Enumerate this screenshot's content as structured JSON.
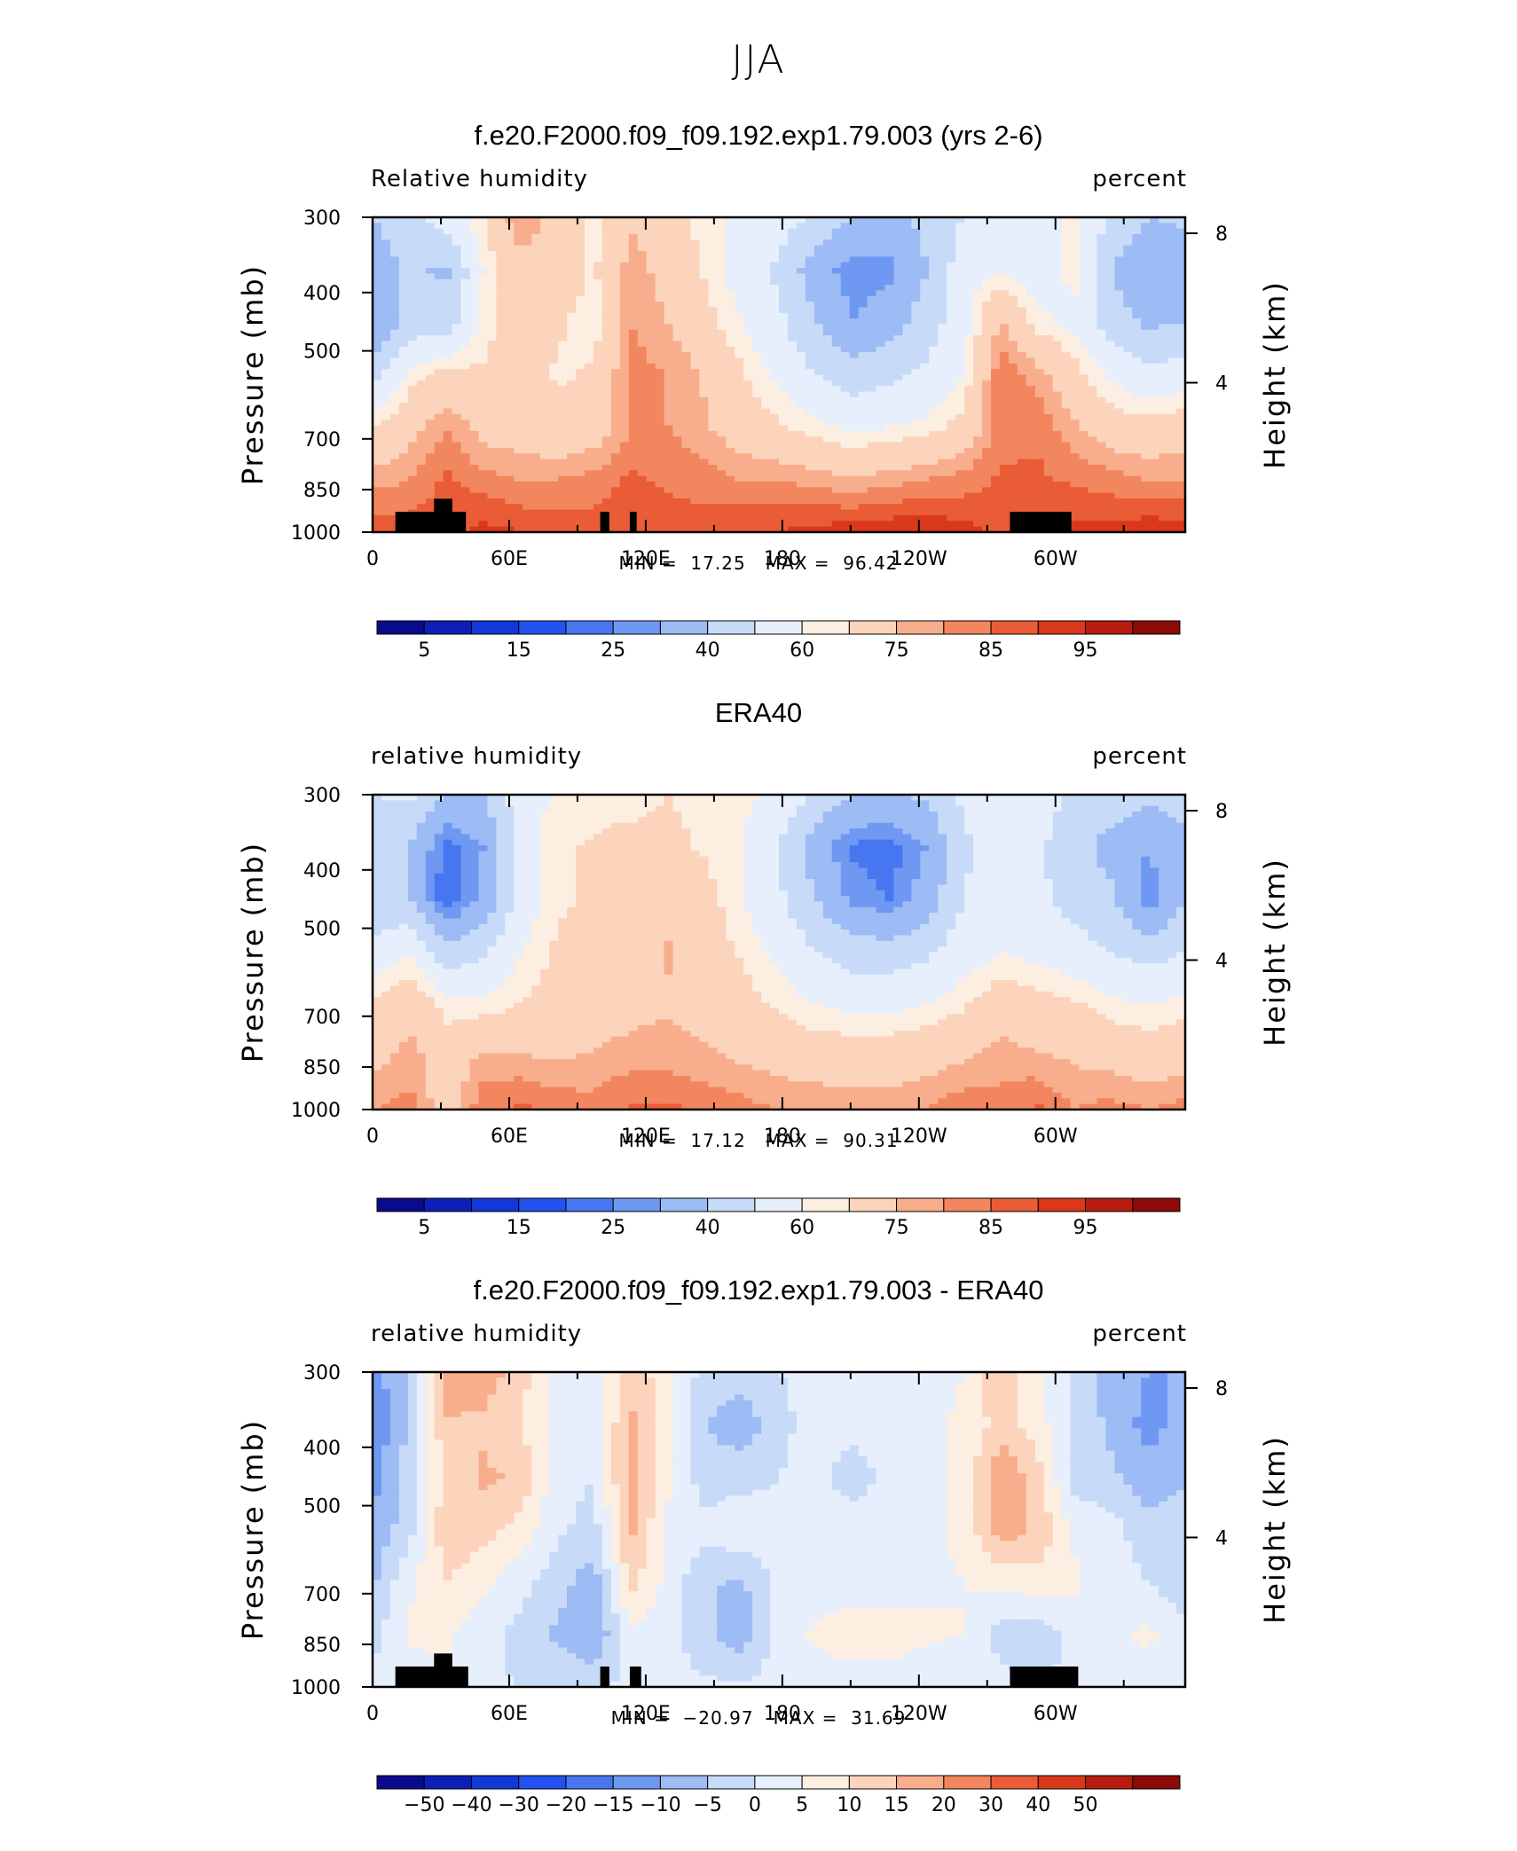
{
  "page": {
    "title": "JJA"
  },
  "colors": {
    "palette": [
      "#0a0a8c",
      "#0e1fb8",
      "#1238d8",
      "#2452f0",
      "#4677f0",
      "#6f98f2",
      "#9dbbf4",
      "#c7dbf8",
      "#e6effb",
      "#fdeee2",
      "#fcd3bb",
      "#f8ae8c",
      "#f2865e",
      "#e95c35",
      "#d9381b",
      "#b81c10",
      "#8c0a08"
    ],
    "land_mask": "#000000"
  },
  "chart_data": [
    {
      "type": "heatmap",
      "panel_id": "model",
      "title": "f.e20.F2000.f09_f09.192.exp1.79.003 (yrs 2-6)",
      "variable_label": "Relative humidity",
      "units": "percent",
      "ylabel": "Pressure (mb)",
      "ylabel_right": "Height (km)",
      "x_ticks": [
        "0",
        "60E",
        "120E",
        "180",
        "120W",
        "60W"
      ],
      "x_tick_values": [
        0,
        60,
        120,
        180,
        240,
        300
      ],
      "xlim": [
        0,
        357
      ],
      "y_ticks": [
        "300",
        "400",
        "500",
        "700",
        "850",
        "1000"
      ],
      "y_tick_values": [
        300,
        400,
        500,
        700,
        850,
        1000
      ],
      "ylim": [
        1000,
        300
      ],
      "height_ticks": [
        "8",
        "4"
      ],
      "height_tick_values": [
        8,
        4
      ],
      "min_label": "MIN =",
      "min_value": "17.25",
      "max_label": "MAX =",
      "max_value": "96.42",
      "colorbar_labels": [
        "5",
        "15",
        "25",
        "40",
        "60",
        "75",
        "85",
        "95"
      ],
      "colorbar_values": [
        5,
        15,
        25,
        40,
        60,
        75,
        85,
        95
      ],
      "field": [
        [
          40,
          48,
          55,
          65,
          80,
          72,
          62,
          74,
          70,
          62,
          58,
          55,
          48,
          40,
          38,
          42,
          50,
          58,
          55,
          62,
          48,
          40,
          42
        ],
        [
          32,
          42,
          38,
          60,
          72,
          70,
          64,
          78,
          72,
          64,
          56,
          48,
          34,
          26,
          28,
          40,
          56,
          60,
          55,
          62,
          40,
          30,
          34
        ],
        [
          30,
          44,
          45,
          62,
          70,
          66,
          62,
          80,
          75,
          68,
          60,
          52,
          40,
          30,
          35,
          45,
          56,
          76,
          62,
          58,
          45,
          38,
          40
        ],
        [
          45,
          62,
          68,
          66,
          70,
          64,
          66,
          82,
          80,
          74,
          66,
          58,
          50,
          45,
          48,
          52,
          60,
          84,
          78,
          68,
          58,
          52,
          55
        ],
        [
          65,
          72,
          80,
          72,
          70,
          68,
          70,
          80,
          80,
          76,
          70,
          66,
          62,
          58,
          60,
          62,
          68,
          82,
          84,
          76,
          70,
          68,
          70
        ],
        [
          78,
          80,
          86,
          82,
          80,
          80,
          82,
          86,
          84,
          82,
          80,
          80,
          78,
          76,
          78,
          80,
          82,
          86,
          86,
          84,
          82,
          80,
          80
        ],
        [
          88,
          88,
          88,
          92,
          90,
          88,
          88,
          90,
          88,
          88,
          90,
          90,
          92,
          93,
          94,
          95,
          92,
          88,
          90,
          92,
          92,
          94,
          92
        ]
      ],
      "land_blocks": [
        {
          "x0": 10,
          "x1": 41,
          "p_top": 925
        },
        {
          "x0": 27,
          "x1": 35,
          "p_top": 880
        },
        {
          "x0": 100,
          "x1": 104,
          "p_top": 925
        },
        {
          "x0": 113,
          "x1": 116,
          "p_top": 925
        },
        {
          "x0": 280,
          "x1": 307,
          "p_top": 925
        }
      ]
    },
    {
      "type": "heatmap",
      "panel_id": "era40",
      "title": "ERA40",
      "variable_label": "relative humidity",
      "units": "percent",
      "ylabel": "Pressure (mb)",
      "ylabel_right": "Height (km)",
      "x_ticks": [
        "0",
        "60E",
        "120E",
        "180",
        "120W",
        "60W"
      ],
      "x_tick_values": [
        0,
        60,
        120,
        180,
        240,
        300
      ],
      "xlim": [
        0,
        357
      ],
      "y_ticks": [
        "300",
        "400",
        "500",
        "700",
        "850",
        "1000"
      ],
      "y_tick_values": [
        300,
        400,
        500,
        700,
        850,
        1000
      ],
      "ylim": [
        1000,
        300
      ],
      "height_ticks": [
        "8",
        "4"
      ],
      "height_tick_values": [
        8,
        4
      ],
      "min_label": "MIN =",
      "min_value": "17.12",
      "max_label": "MAX =",
      "max_value": "90.31",
      "colorbar_labels": [
        "5",
        "15",
        "25",
        "40",
        "60",
        "75",
        "85",
        "95"
      ],
      "colorbar_values": [
        5,
        15,
        25,
        40,
        60,
        75,
        85,
        95
      ],
      "field": [
        [
          50,
          52,
          38,
          40,
          55,
          62,
          62,
          62,
          65,
          63,
          62,
          58,
          48,
          40,
          38,
          42,
          52,
          58,
          55,
          48,
          46,
          42,
          44
        ],
        [
          44,
          40,
          22,
          30,
          55,
          64,
          66,
          68,
          67,
          64,
          60,
          50,
          34,
          24,
          22,
          30,
          48,
          56,
          52,
          44,
          36,
          30,
          38
        ],
        [
          42,
          40,
          20,
          32,
          55,
          64,
          66,
          68,
          72,
          68,
          60,
          52,
          40,
          28,
          25,
          34,
          50,
          56,
          52,
          46,
          42,
          26,
          40
        ],
        [
          54,
          60,
          44,
          48,
          60,
          66,
          68,
          70,
          76,
          70,
          64,
          58,
          50,
          45,
          45,
          48,
          56,
          60,
          58,
          54,
          50,
          46,
          50
        ],
        [
          66,
          72,
          62,
          62,
          65,
          68,
          70,
          72,
          74,
          72,
          68,
          64,
          60,
          58,
          58,
          60,
          64,
          70,
          68,
          66,
          62,
          60,
          62
        ],
        [
          72,
          78,
          70,
          76,
          76,
          74,
          76,
          78,
          78,
          76,
          74,
          72,
          70,
          70,
          70,
          72,
          74,
          78,
          76,
          74,
          72,
          70,
          72
        ],
        [
          80,
          82,
          70,
          84,
          86,
          84,
          82,
          86,
          86,
          84,
          82,
          80,
          80,
          78,
          78,
          80,
          84,
          82,
          86,
          80,
          82,
          80,
          82
        ]
      ],
      "land_blocks": []
    },
    {
      "type": "heatmap",
      "panel_id": "difference",
      "title": "f.e20.F2000.f09_f09.192.exp1.79.003 - ERA40",
      "variable_label": "relative humidity",
      "units": "percent",
      "ylabel": "Pressure (mb)",
      "ylabel_right": "Height (km)",
      "x_ticks": [
        "0",
        "60E",
        "120E",
        "180",
        "120W",
        "60W"
      ],
      "x_tick_values": [
        0,
        60,
        120,
        180,
        240,
        300
      ],
      "xlim": [
        0,
        357
      ],
      "y_ticks": [
        "300",
        "400",
        "500",
        "700",
        "850",
        "1000"
      ],
      "y_tick_values": [
        300,
        400,
        500,
        700,
        850,
        1000
      ],
      "ylim": [
        1000,
        300
      ],
      "height_ticks": [
        "8",
        "4"
      ],
      "height_tick_values": [
        8,
        4
      ],
      "min_label": "MIN =",
      "min_value": "−20.97",
      "max_label": "MAX =",
      "max_value": "31.69",
      "colorbar_labels": [
        "−50",
        "−40",
        "−30",
        "−20",
        "−15",
        "−10",
        "−5",
        "0",
        "5",
        "10",
        "15",
        "20",
        "30",
        "40",
        "50"
      ],
      "colorbar_values": [
        -50,
        -40,
        -30,
        -20,
        -15,
        -10,
        -5,
        0,
        5,
        10,
        15,
        20,
        30,
        40,
        50
      ],
      "field": [
        [
          -12,
          -5,
          20,
          18,
          12,
          4,
          2,
          14,
          6,
          -2,
          -3,
          0,
          2,
          4,
          2,
          2,
          5,
          15,
          6,
          0,
          -8,
          -10,
          -10
        ],
        [
          -15,
          -4,
          14,
          14,
          10,
          3,
          2,
          16,
          8,
          -5,
          -8,
          -2,
          3,
          2,
          3,
          4,
          6,
          12,
          8,
          -2,
          -6,
          -12,
          -8
        ],
        [
          -12,
          -2,
          12,
          16,
          14,
          2,
          0,
          18,
          6,
          -3,
          -2,
          0,
          2,
          -3,
          2,
          4,
          6,
          20,
          12,
          -2,
          -4,
          -8,
          -6
        ],
        [
          -9,
          -2,
          14,
          12,
          8,
          1,
          -2,
          16,
          4,
          2,
          4,
          2,
          2,
          4,
          2,
          4,
          6,
          18,
          14,
          4,
          2,
          -3,
          -2
        ],
        [
          -6,
          4,
          10,
          6,
          2,
          -3,
          -8,
          12,
          3,
          -4,
          -6,
          2,
          2,
          2,
          2,
          4,
          5,
          6,
          8,
          6,
          2,
          0,
          -4
        ],
        [
          -2,
          6,
          6,
          2,
          -2,
          -6,
          -10,
          4,
          2,
          -4,
          -8,
          2,
          6,
          8,
          8,
          6,
          5,
          -2,
          -4,
          2,
          4,
          6,
          2
        ],
        [
          2,
          2,
          4,
          1,
          0,
          -1,
          -2,
          2,
          2,
          1,
          1,
          2,
          2,
          2,
          2,
          1,
          1,
          2,
          -1,
          2,
          2,
          2,
          2
        ]
      ],
      "land_blocks": [
        {
          "x0": 10,
          "x1": 42,
          "p_top": 925
        },
        {
          "x0": 27,
          "x1": 35,
          "p_top": 880
        },
        {
          "x0": 100,
          "x1": 104,
          "p_top": 925
        },
        {
          "x0": 113,
          "x1": 118,
          "p_top": 925
        },
        {
          "x0": 280,
          "x1": 310,
          "p_top": 925
        }
      ]
    }
  ]
}
